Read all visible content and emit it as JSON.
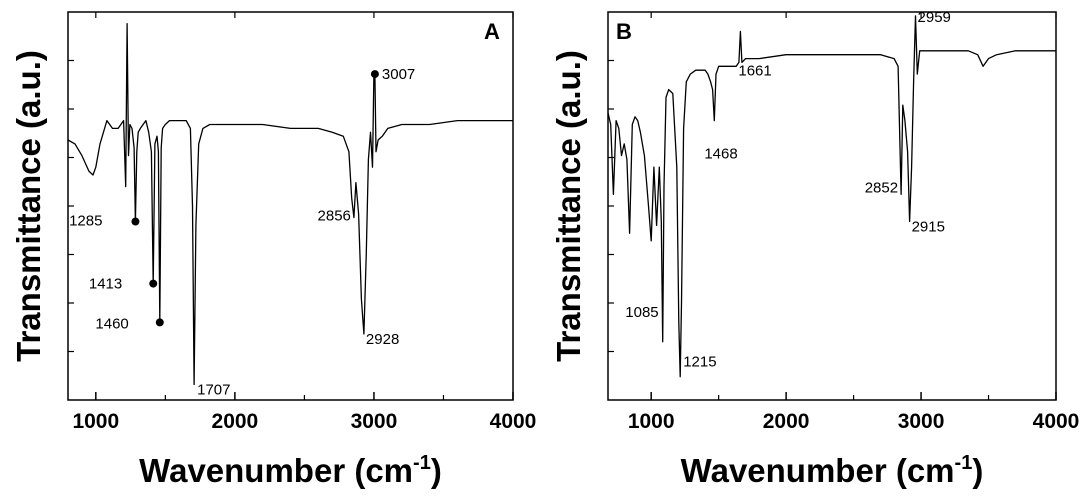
{
  "chart_data": [
    {
      "type": "line",
      "panel_label": "A",
      "xlabel": "Wavenumber (cm",
      "xlabel_sup": "-1",
      "xlabel_end": ")",
      "ylabel": "Transmittance (a.u.)",
      "xlim": [
        800,
        4000
      ],
      "ylim": [
        0,
        1
      ],
      "x_ticks": [
        "1000",
        "2000",
        "3000",
        "4000"
      ],
      "x_tick_values": [
        1000,
        2000,
        3000,
        4000
      ],
      "y_ticks_shown": false,
      "series": [
        {
          "x": [
            800,
            850,
            900,
            950,
            980,
            1000,
            1030,
            1080,
            1120,
            1160,
            1200,
            1215,
            1225,
            1235,
            1245,
            1260,
            1275,
            1285,
            1295,
            1305,
            1320,
            1340,
            1360,
            1380,
            1400,
            1413,
            1425,
            1440,
            1450,
            1460,
            1470,
            1480,
            1500,
            1530,
            1560,
            1600,
            1650,
            1680,
            1695,
            1707,
            1720,
            1740,
            1770,
            1820,
            1900,
            2000,
            2200,
            2400,
            2600,
            2700,
            2780,
            2820,
            2840,
            2856,
            2870,
            2890,
            2910,
            2928,
            2945,
            2960,
            2975,
            2990,
            3000,
            3007,
            3015,
            3030,
            3060,
            3100,
            3200,
            3400,
            3600,
            3800,
            4000
          ],
          "y": [
            0.67,
            0.66,
            0.63,
            0.59,
            0.58,
            0.6,
            0.66,
            0.72,
            0.7,
            0.7,
            0.72,
            0.55,
            0.97,
            0.63,
            0.71,
            0.7,
            0.65,
            0.46,
            0.64,
            0.69,
            0.7,
            0.71,
            0.72,
            0.69,
            0.64,
            0.3,
            0.66,
            0.68,
            0.64,
            0.2,
            0.65,
            0.7,
            0.71,
            0.72,
            0.72,
            0.72,
            0.72,
            0.7,
            0.5,
            0.04,
            0.45,
            0.66,
            0.7,
            0.71,
            0.71,
            0.71,
            0.71,
            0.7,
            0.7,
            0.69,
            0.68,
            0.64,
            0.52,
            0.47,
            0.56,
            0.48,
            0.26,
            0.17,
            0.38,
            0.62,
            0.69,
            0.6,
            0.84,
            0.84,
            0.64,
            0.67,
            0.68,
            0.7,
            0.71,
            0.71,
            0.72,
            0.72,
            0.72
          ]
        }
      ],
      "annotations": [
        {
          "text": "1285",
          "x": 1285,
          "y": 0.46,
          "marker": true
        },
        {
          "text": "1413",
          "x": 1413,
          "y": 0.3,
          "marker": true
        },
        {
          "text": "1460",
          "x": 1460,
          "y": 0.2,
          "marker": true
        },
        {
          "text": "1707",
          "x": 1707,
          "y": 0.04,
          "marker": false
        },
        {
          "text": "2856",
          "x": 2856,
          "y": 0.47,
          "marker": false
        },
        {
          "text": "2928",
          "x": 2928,
          "y": 0.17,
          "marker": false
        },
        {
          "text": "3007",
          "x": 3007,
          "y": 0.84,
          "marker": true
        }
      ],
      "grid": false,
      "color": "#000000"
    },
    {
      "type": "line",
      "panel_label": "B",
      "xlabel": "Wavenumber (cm",
      "xlabel_sup": "-1",
      "xlabel_end": ")",
      "ylabel": "Transmittance (a.u.)",
      "xlim": [
        680,
        4000
      ],
      "ylim": [
        0,
        1
      ],
      "x_ticks": [
        "1000",
        "2000",
        "3000",
        "4000"
      ],
      "x_tick_values": [
        1000,
        2000,
        3000,
        4000
      ],
      "y_ticks_shown": false,
      "series": [
        {
          "x": [
            680,
            700,
            720,
            740,
            760,
            780,
            800,
            820,
            840,
            860,
            880,
            900,
            920,
            950,
            980,
            1000,
            1020,
            1040,
            1060,
            1075,
            1085,
            1095,
            1110,
            1130,
            1160,
            1190,
            1205,
            1215,
            1225,
            1240,
            1260,
            1290,
            1330,
            1370,
            1400,
            1420,
            1440,
            1455,
            1468,
            1480,
            1500,
            1540,
            1590,
            1630,
            1650,
            1661,
            1672,
            1700,
            1800,
            2000,
            2400,
            2700,
            2800,
            2830,
            2852,
            2865,
            2880,
            2900,
            2915,
            2930,
            2945,
            2959,
            2972,
            2990,
            3050,
            3200,
            3350,
            3420,
            3460,
            3500,
            3560,
            3700,
            4000
          ],
          "y": [
            0.74,
            0.71,
            0.53,
            0.72,
            0.7,
            0.63,
            0.66,
            0.62,
            0.43,
            0.71,
            0.73,
            0.72,
            0.69,
            0.63,
            0.5,
            0.41,
            0.6,
            0.45,
            0.6,
            0.46,
            0.15,
            0.55,
            0.78,
            0.8,
            0.79,
            0.6,
            0.2,
            0.06,
            0.25,
            0.7,
            0.82,
            0.84,
            0.85,
            0.85,
            0.85,
            0.84,
            0.82,
            0.8,
            0.72,
            0.84,
            0.86,
            0.86,
            0.86,
            0.86,
            0.87,
            0.95,
            0.87,
            0.88,
            0.88,
            0.89,
            0.89,
            0.89,
            0.88,
            0.86,
            0.53,
            0.76,
            0.72,
            0.64,
            0.46,
            0.6,
            0.82,
            0.99,
            0.84,
            0.9,
            0.9,
            0.9,
            0.9,
            0.89,
            0.86,
            0.88,
            0.89,
            0.9,
            0.9
          ]
        }
      ],
      "annotations": [
        {
          "text": "1085",
          "x": 1085,
          "y": 0.15
        },
        {
          "text": "1215",
          "x": 1215,
          "y": 0.06
        },
        {
          "text": "1468",
          "x": 1468,
          "y": 0.72
        },
        {
          "text": "1661",
          "x": 1661,
          "y": 0.95
        },
        {
          "text": "2852",
          "x": 2852,
          "y": 0.53
        },
        {
          "text": "2915",
          "x": 2915,
          "y": 0.46
        },
        {
          "text": "2959",
          "x": 2959,
          "y": 0.99
        }
      ],
      "grid": false,
      "color": "#000000"
    }
  ]
}
